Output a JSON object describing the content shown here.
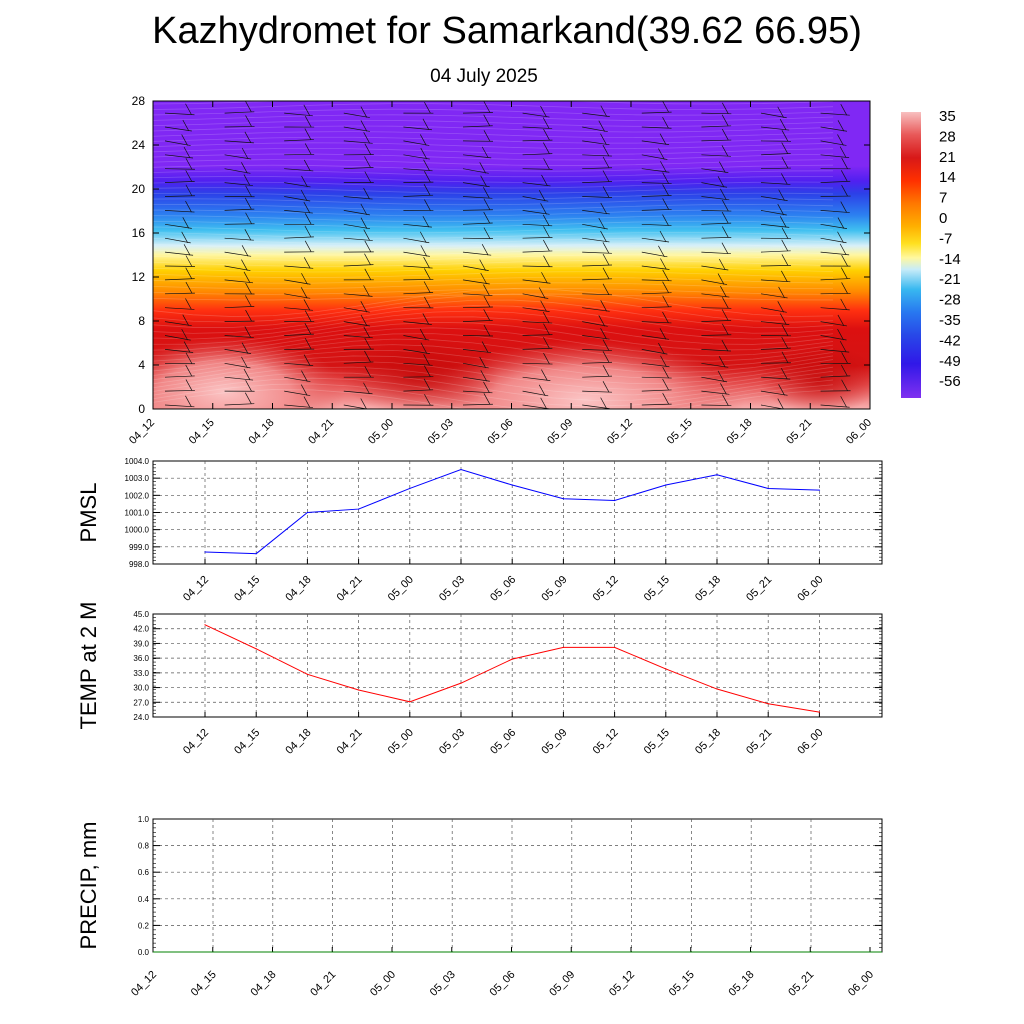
{
  "header": {
    "title": "Kazhydromet for Samarkand(39.62 66.95)",
    "subtitle": "04 July 2025"
  },
  "chart_data": [
    {
      "type": "heatmap",
      "name_hint": "cross-section",
      "x_ticks": [
        "04_12",
        "04_15",
        "04_18",
        "04_21",
        "05_00",
        "05_03",
        "05_06",
        "05_09",
        "05_12",
        "05_15",
        "05_18",
        "05_21",
        "06_00"
      ],
      "y_ticks": [
        0,
        4,
        8,
        12,
        16,
        20,
        24,
        28
      ],
      "ylim": [
        0,
        28
      ],
      "colorbar": {
        "labels": [
          "35",
          "28",
          "21",
          "14",
          "7",
          "0",
          "-7",
          "-14",
          "-21",
          "-28",
          "-35",
          "-42",
          "-49",
          "-56"
        ],
        "colors": [
          "#f8b8b8",
          "#e85050",
          "#d81818",
          "#ff3000",
          "#ff7000",
          "#ffa800",
          "#ffd800",
          "#fff890",
          "#c8ecf8",
          "#38b8f0",
          "#2878f0",
          "#2848e8",
          "#3018e8",
          "#8030f0"
        ]
      }
    },
    {
      "type": "line",
      "ylabel": "PMSL",
      "x": [
        "04_12",
        "04_15",
        "04_18",
        "04_21",
        "05_00",
        "05_03",
        "05_06",
        "05_09",
        "05_12",
        "05_15",
        "05_18",
        "05_21",
        "06_00"
      ],
      "ylim": [
        998.0,
        1004.0
      ],
      "y_ticks": [
        "998.0",
        "999.0",
        "1000.0",
        "1001.0",
        "1002.0",
        "1003.0",
        "1004.0"
      ],
      "series": [
        {
          "values": [
            998.7,
            998.6,
            1001.0,
            1001.2,
            1002.4,
            1003.5,
            1002.6,
            1001.8,
            1001.7,
            1002.6,
            1003.2,
            1002.4,
            1002.3
          ],
          "color": "#0000ff"
        }
      ]
    },
    {
      "type": "line",
      "ylabel": "TEMP at 2 M",
      "x": [
        "04_12",
        "04_15",
        "04_18",
        "04_21",
        "05_00",
        "05_03",
        "05_06",
        "05_09",
        "05_12",
        "05_15",
        "05_18",
        "05_21",
        "06_00"
      ],
      "ylim": [
        24.0,
        45.0
      ],
      "y_ticks": [
        "24.0",
        "27.0",
        "30.0",
        "33.0",
        "36.0",
        "39.0",
        "42.0",
        "45.0"
      ],
      "series": [
        {
          "values": [
            42.8,
            37.9,
            32.7,
            29.5,
            27.1,
            30.9,
            35.8,
            38.2,
            38.2,
            33.8,
            29.7,
            26.7,
            25.0
          ],
          "color": "#ff0000"
        }
      ]
    },
    {
      "type": "line",
      "ylabel": "PRECIP, mm",
      "x": [
        "04_12",
        "04_15",
        "04_18",
        "04_21",
        "05_00",
        "05_03",
        "05_06",
        "05_09",
        "05_12",
        "05_15",
        "05_18",
        "05_21",
        "06_00"
      ],
      "ylim": [
        0.0,
        1.0
      ],
      "y_ticks": [
        "0.0",
        "0.2",
        "0.4",
        "0.6",
        "0.8",
        "1.0"
      ],
      "series": [
        {
          "values": [
            0,
            0,
            0,
            0,
            0,
            0,
            0,
            0,
            0,
            0,
            0,
            0,
            0
          ],
          "color": "#008000"
        }
      ]
    }
  ]
}
